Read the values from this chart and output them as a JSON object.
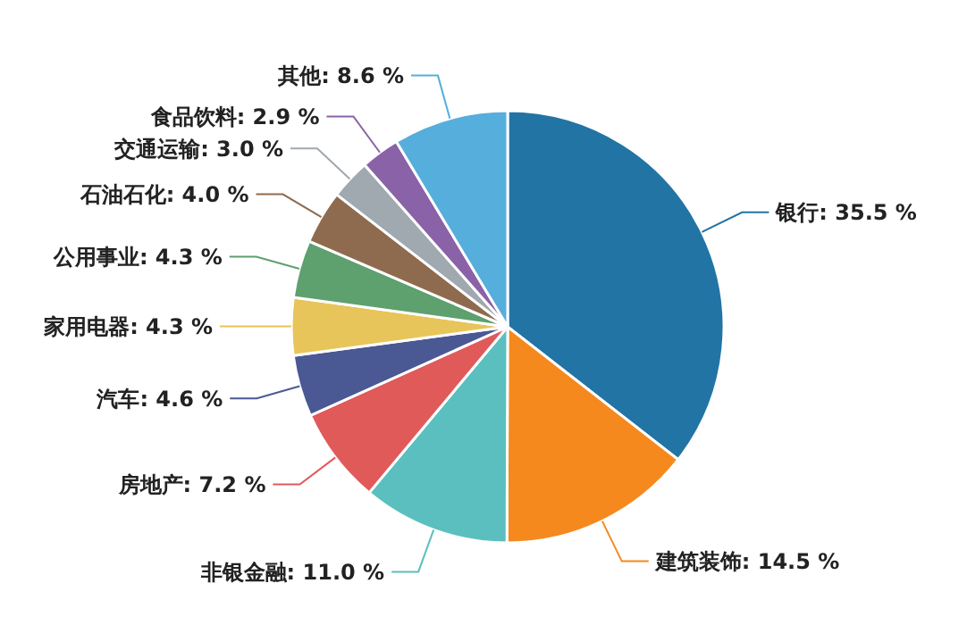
{
  "chart_data": {
    "type": "pie",
    "categories": [
      "银行",
      "建筑装饰",
      "非银金融",
      "房地产",
      "汽车",
      "家用电器",
      "公用事业",
      "石油石化",
      "交通运输",
      "食品饮料",
      "其他"
    ],
    "values": [
      35.5,
      14.5,
      11.0,
      7.2,
      4.6,
      4.3,
      4.3,
      4.0,
      3.0,
      2.9,
      8.6
    ],
    "value_labels": [
      "35.5 %",
      "14.5 %",
      "11.0 %",
      "7.2 %",
      "4.6 %",
      "4.3 %",
      "4.3 %",
      "4.0 %",
      "3.0 %",
      "2.9 %",
      "8.6 %"
    ],
    "colors": [
      "#2274a5",
      "#f5891e",
      "#5bbfbf",
      "#e05a5a",
      "#4a5894",
      "#e8c55a",
      "#5ea06e",
      "#8e6b4f",
      "#a0a8b0",
      "#8a62a8",
      "#56aedc"
    ],
    "legend": false
  }
}
